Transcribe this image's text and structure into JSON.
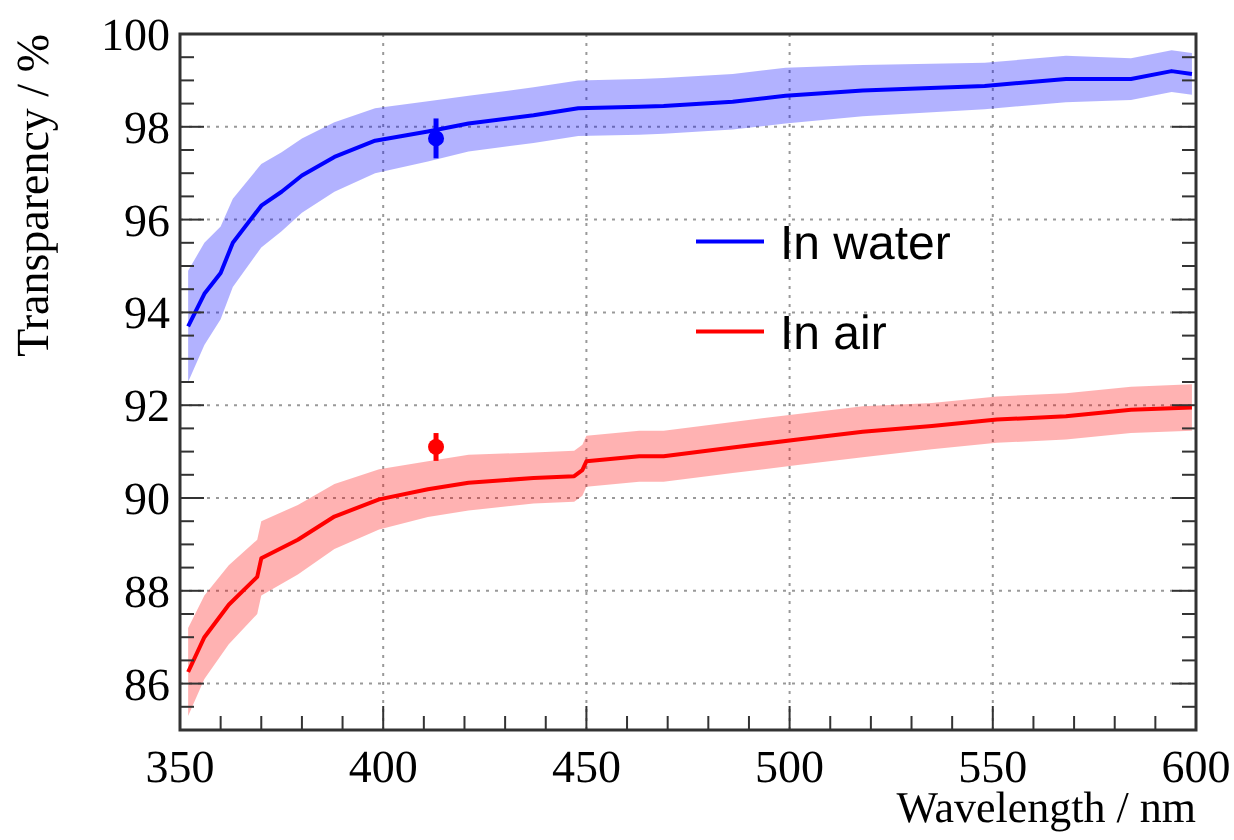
{
  "chart_data": {
    "type": "line",
    "xlabel": "Wavelength / nm",
    "ylabel": "Transparency / %",
    "xlim": [
      350,
      600
    ],
    "xticks": [
      350,
      {
        "value": 360,
        "label": null
      },
      {
        "value": 370,
        "label": null
      },
      {
        "value": 380,
        "label": null
      },
      {
        "value": 390,
        "label": null
      },
      400,
      {
        "value": 410,
        "label": null
      },
      {
        "value": 420,
        "label": null
      },
      {
        "value": 430,
        "label": null
      },
      {
        "value": 440,
        "label": null
      },
      450,
      {
        "value": 460,
        "label": null
      },
      {
        "value": 470,
        "label": null
      },
      {
        "value": 480,
        "label": null
      },
      {
        "value": 490,
        "label": null
      },
      500,
      {
        "value": 510,
        "label": null
      },
      {
        "value": 520,
        "label": null
      },
      {
        "value": 530,
        "label": null
      },
      {
        "value": 540,
        "label": null
      },
      550,
      {
        "value": 560,
        "label": null
      },
      {
        "value": 570,
        "label": null
      },
      {
        "value": 580,
        "label": null
      },
      {
        "value": 590,
        "label": null
      },
      600
    ],
    "ylim": [
      85,
      100
    ],
    "yticks": [
      {
        "value": 85.5,
        "label": null
      },
      86,
      {
        "value": 86.5,
        "label": null
      },
      {
        "value": 87,
        "label": null
      },
      {
        "value": 87.5,
        "label": null
      },
      88,
      {
        "value": 88.5,
        "label": null
      },
      {
        "value": 89,
        "label": null
      },
      {
        "value": 89.5,
        "label": null
      },
      90,
      {
        "value": 90.5,
        "label": null
      },
      {
        "value": 91,
        "label": null
      },
      {
        "value": 91.5,
        "label": null
      },
      92,
      {
        "value": 92.5,
        "label": null
      },
      {
        "value": 93,
        "label": null
      },
      {
        "value": 93.5,
        "label": null
      },
      94,
      {
        "value": 94.5,
        "label": null
      },
      {
        "value": 95,
        "label": null
      },
      {
        "value": 95.5,
        "label": null
      },
      96,
      {
        "value": 96.5,
        "label": null
      },
      {
        "value": 97,
        "label": null
      },
      {
        "value": 97.5,
        "label": null
      },
      98,
      {
        "value": 98.5,
        "label": null
      },
      {
        "value": 99,
        "label": null
      },
      {
        "value": 99.5,
        "label": null
      },
      100
    ],
    "grid": true,
    "legend": "right",
    "line_style": "solid",
    "series": [
      {
        "name": "In water",
        "color": "#0000ff",
        "x": [
          352,
          356,
          360,
          363,
          370,
          375,
          380,
          388,
          398,
          411,
          421,
          437,
          448,
          463,
          469,
          486,
          499,
          518,
          548,
          568,
          584,
          594,
          599
        ],
        "values": [
          93.7,
          94.4,
          94.85,
          95.5,
          96.3,
          96.6,
          96.95,
          97.35,
          97.7,
          97.9,
          98.07,
          98.25,
          98.4,
          98.43,
          98.45,
          98.54,
          98.67,
          98.78,
          98.88,
          99.03,
          99.03,
          99.2,
          99.14
        ],
        "lower": [
          92.5,
          93.3,
          93.85,
          94.55,
          95.4,
          95.75,
          96.15,
          96.6,
          97.0,
          97.25,
          97.47,
          97.65,
          97.8,
          97.83,
          97.85,
          97.94,
          98.07,
          98.23,
          98.38,
          98.53,
          98.58,
          98.75,
          98.69
        ],
        "upper": [
          94.9,
          95.5,
          95.85,
          96.45,
          97.2,
          97.45,
          97.75,
          98.1,
          98.4,
          98.55,
          98.67,
          98.85,
          99.0,
          99.03,
          99.05,
          99.14,
          99.27,
          99.33,
          99.38,
          99.53,
          99.48,
          99.65,
          99.59
        ]
      },
      {
        "name": "In air",
        "color": "#ff0000",
        "x": [
          352,
          356,
          362,
          369,
          370,
          379,
          388,
          399,
          411,
          421,
          437,
          447,
          449,
          450,
          463,
          469,
          486,
          502,
          518,
          535,
          551,
          568,
          584,
          599
        ],
        "values": [
          86.25,
          87.0,
          87.7,
          88.3,
          88.7,
          89.1,
          89.6,
          89.97,
          90.19,
          90.33,
          90.43,
          90.47,
          90.6,
          90.79,
          90.9,
          90.9,
          91.09,
          91.26,
          91.43,
          91.55,
          91.69,
          91.76,
          91.9,
          91.95
        ],
        "lower": [
          85.3,
          86.1,
          86.85,
          87.5,
          87.9,
          88.35,
          88.9,
          89.32,
          89.59,
          89.73,
          89.88,
          89.92,
          90.05,
          90.24,
          90.35,
          90.35,
          90.54,
          90.71,
          90.88,
          91.05,
          91.19,
          91.26,
          91.4,
          91.45
        ],
        "upper": [
          87.2,
          87.9,
          88.55,
          89.1,
          89.5,
          89.85,
          90.3,
          90.62,
          90.79,
          90.93,
          90.98,
          91.02,
          91.15,
          91.34,
          91.45,
          91.45,
          91.64,
          91.81,
          91.98,
          92.05,
          92.19,
          92.26,
          92.4,
          92.45
        ]
      },
      {
        "type": "scatter",
        "marker": "circle",
        "color": "#0000ff",
        "x": [
          413
        ],
        "values": [
          97.75
        ],
        "errors": [
          0.43
        ]
      },
      {
        "type": "scatter",
        "marker": "circle",
        "color": "#ff0000",
        "x": [
          413
        ],
        "values": [
          91.1
        ],
        "errors": [
          0.3
        ]
      }
    ]
  }
}
